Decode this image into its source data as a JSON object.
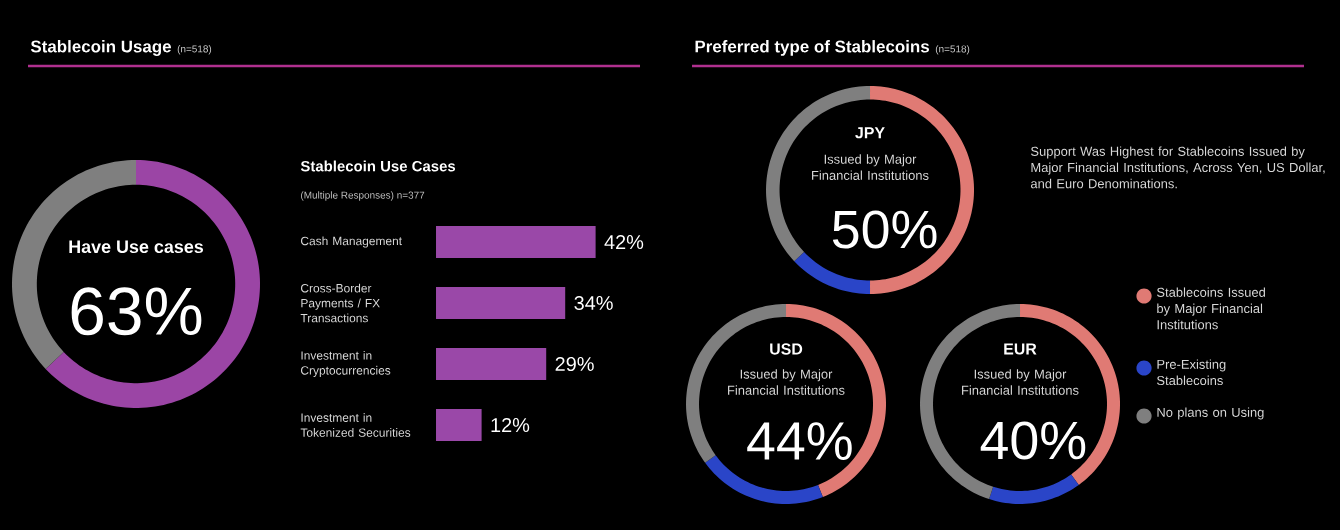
{
  "chart_data": [
    {
      "type": "donut",
      "title": "Stablecoin Usage",
      "subtitle": "(n=518)",
      "categories": [
        "Have Use cases",
        null
      ],
      "values": [
        63,
        37
      ],
      "colors": [
        "#9b45a5",
        "#7f7f7f"
      ],
      "value_labels": [
        "63%",
        null
      ]
    },
    {
      "type": "bar",
      "orientation": "horizontal",
      "title": "Stablecoin Use Cases",
      "subtitle": "(Multiple Responses) n=377",
      "categories": [
        "Cash Management",
        "Cross-Border Payments / FX Transactions",
        "Investment in Cryptocurrencies",
        "Investment in Tokenized Securities"
      ],
      "values": [
        42,
        34,
        29,
        12
      ],
      "color": "#9a48a8",
      "value_labels": [
        "42%",
        "34%",
        "29%",
        "12%"
      ]
    },
    {
      "type": "donut",
      "title": "JPY",
      "subtitle": "Issued by Major Financial Institutions",
      "categories": [
        null,
        null,
        null
      ],
      "values": [
        50,
        13,
        37
      ],
      "colors": [
        "#e07a74",
        "#2a45c8",
        "#7f7f7f"
      ],
      "value_labels": [
        "50%",
        null,
        null
      ],
      "annotations": [
        "Preferred type of Stablecoins",
        "(n=518)",
        "Support Was Highest for Stablecoins Issued by Major Financial Institutions, Across Yen, US Dollar, and Euro Denominations."
      ]
    },
    {
      "type": "donut",
      "title": "USD",
      "subtitle": "Issued by Major Financial Institutions",
      "categories": [
        null,
        null,
        null
      ],
      "values": [
        44,
        21,
        35
      ],
      "colors": [
        "#e07a74",
        "#2a45c8",
        "#7f7f7f"
      ],
      "value_labels": [
        "44%",
        null,
        null
      ]
    },
    {
      "type": "donut",
      "title": "EUR",
      "subtitle": "Issued by Major Financial Institutions",
      "categories": [
        "Stablecoins Issued by Major Financial Institutions",
        "Pre-Existing Stablecoins",
        "No plans on Using"
      ],
      "values": [
        40,
        15,
        45
      ],
      "colors": [
        "#e07a74",
        "#2a45c8",
        "#7f7f7f"
      ],
      "value_labels": [
        "40%",
        null,
        null
      ],
      "legend": "right"
    }
  ]
}
